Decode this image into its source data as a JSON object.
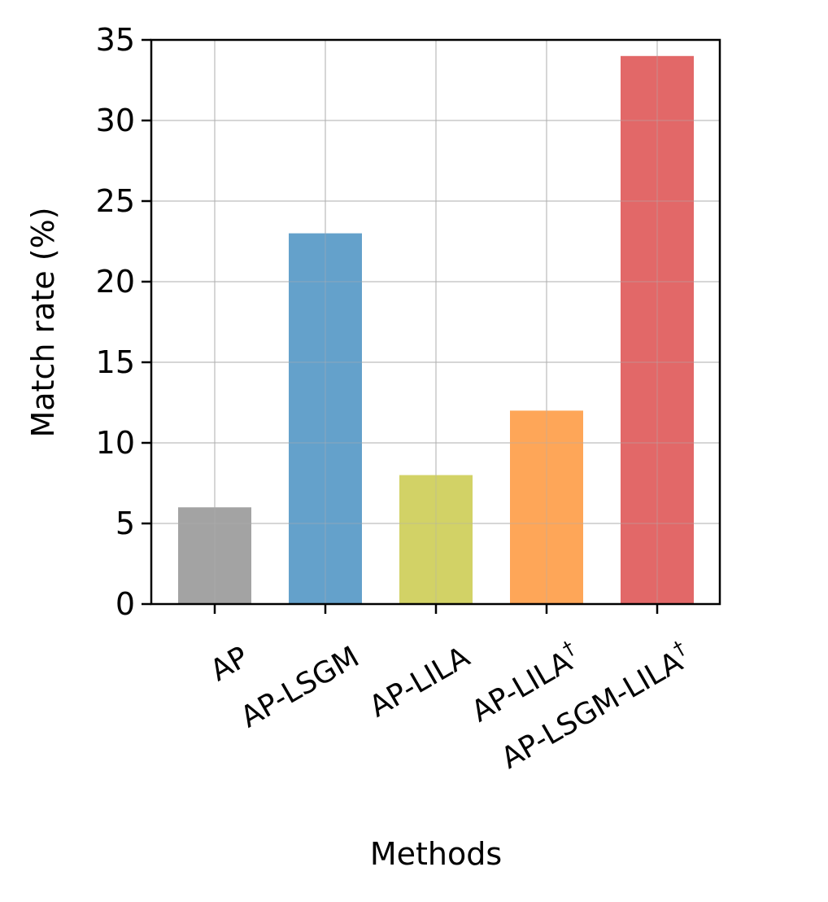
{
  "chart_data": {
    "type": "bar",
    "categories": [
      {
        "label": "AP",
        "sup": ""
      },
      {
        "label": "AP-LSGM",
        "sup": ""
      },
      {
        "label": "AP-LILA",
        "sup": ""
      },
      {
        "label": "AP-LILA",
        "sup": "†"
      },
      {
        "label": "AP-LSGM-LILA",
        "sup": "†"
      }
    ],
    "values": [
      6,
      23,
      8,
      12,
      34
    ],
    "colors": [
      "#a3a3a3",
      "#64a1cb",
      "#d2d266",
      "#fea658",
      "#e26868"
    ],
    "xlabel": "Methods",
    "ylabel": "Match rate (%)",
    "ylim": [
      0,
      35
    ],
    "yticks": [
      0,
      5,
      10,
      15,
      20,
      25,
      30,
      35
    ],
    "grid": true
  }
}
